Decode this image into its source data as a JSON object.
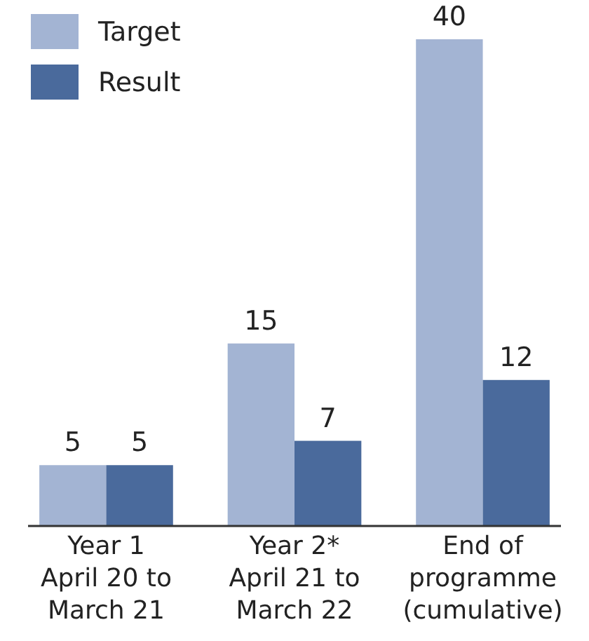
{
  "chart_data": {
    "type": "bar",
    "categories": [
      "Year 1\nApril 20 to\nMarch 21",
      "Year 2*\nApril 21 to\nMarch 22",
      "End of\nprogramme\n(cumulative)"
    ],
    "series": [
      {
        "name": "Target",
        "color": "#a3b4d3",
        "values": [
          5,
          15,
          40
        ]
      },
      {
        "name": "Result",
        "color": "#4a6a9c",
        "values": [
          5,
          7,
          12
        ]
      }
    ],
    "data_labels": true,
    "legend": "top left"
  }
}
